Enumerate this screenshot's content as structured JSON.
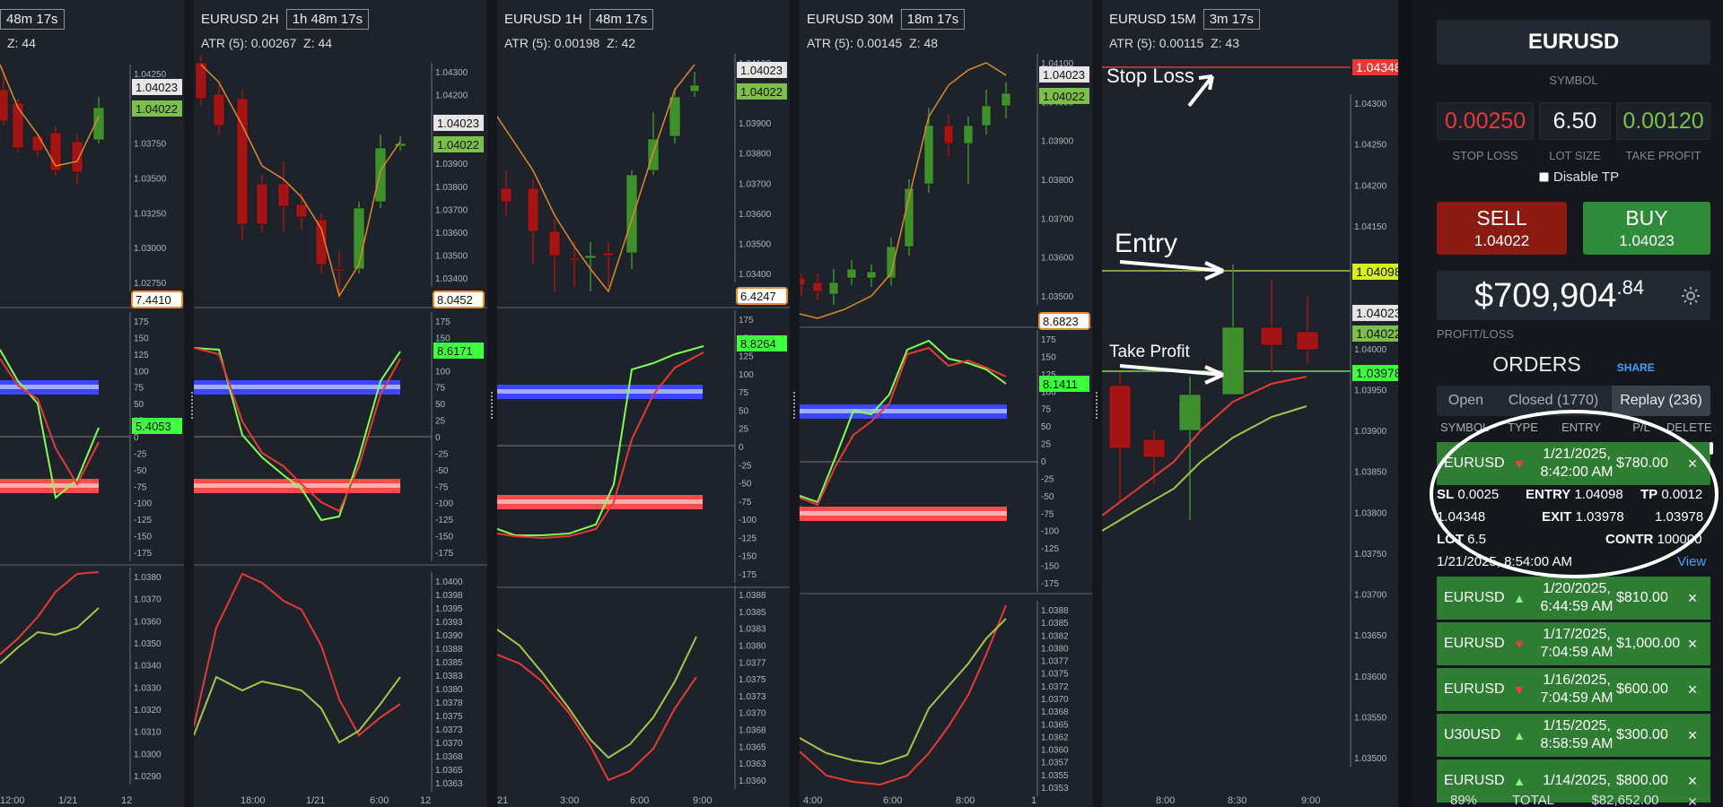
{
  "charts": [
    {
      "symbol": "",
      "timeframe": "48m 17s",
      "atr": "",
      "z": "Z: 44",
      "price_ticks": [
        "1.04250",
        "1.04000",
        "1.03750",
        "1.03500",
        "1.03250",
        "1.03000",
        "1.02750"
      ],
      "price_tags": [
        "1.04023",
        "1.04022"
      ],
      "osc_value": "7.4410",
      "osc_tag": "5.4053",
      "osc_ticks": [
        "175",
        "150",
        "125",
        "100",
        "75",
        "50",
        "25",
        "0",
        "-25",
        "-50",
        "-75",
        "-100",
        "-125",
        "-150",
        "-175"
      ],
      "low_ticks": [
        "1.0380",
        "1.0370",
        "1.0360",
        "1.0350",
        "1.0340",
        "1.0330",
        "1.0320",
        "1.0310",
        "1.0300",
        "1.0290"
      ],
      "time_ticks": [
        "12:00",
        "1/21",
        "12"
      ]
    },
    {
      "symbol": "EURUSD 2H",
      "timeframe": "1h 48m 17s",
      "atr": "ATR (5): 0.00267",
      "z": "Z: 44",
      "price_ticks": [
        "1.04300",
        "1.04200",
        "1.04100",
        "1.04000",
        "1.03900",
        "1.03800",
        "1.03700",
        "1.03600",
        "1.03500",
        "1.03400"
      ],
      "price_tags": [
        "1.04023",
        "1.04022"
      ],
      "osc_value": "8.0452",
      "osc_tag": "8.6171",
      "osc_ticks": [
        "175",
        "150",
        "125",
        "100",
        "75",
        "50",
        "25",
        "0",
        "-25",
        "-50",
        "-75",
        "-100",
        "-125",
        "-150",
        "-175"
      ],
      "low_ticks": [
        "1.0400",
        "1.0398",
        "1.0395",
        "1.0393",
        "1.0390",
        "1.0388",
        "1.0385",
        "1.0383",
        "1.0380",
        "1.0378",
        "1.0375",
        "1.0373",
        "1.0370",
        "1.0368",
        "1.0365",
        "1.0363"
      ],
      "time_ticks": [
        "18:00",
        "1/21",
        "6:00",
        "12"
      ]
    },
    {
      "symbol": "EURUSD 1H",
      "timeframe": "48m 17s",
      "atr": "ATR (5): 0.00198",
      "z": "Z: 42",
      "price_ticks": [
        "1.04100",
        "1.04000",
        "1.03900",
        "1.03800",
        "1.03700",
        "1.03600",
        "1.03500",
        "1.03400"
      ],
      "price_tags": [
        "1.04023",
        "1.04022"
      ],
      "osc_value": "6.4247",
      "osc_tag": "8.8264",
      "osc_ticks": [
        "175",
        "150",
        "125",
        "100",
        "75",
        "50",
        "25",
        "0",
        "-25",
        "-50",
        "-75",
        "-100",
        "-125",
        "-150",
        "-175"
      ],
      "low_ticks": [
        "1.0388",
        "1.0385",
        "1.0383",
        "1.0380",
        "1.0377",
        "1.0375",
        "1.0373",
        "1.0370",
        "1.0368",
        "1.0365",
        "1.0363",
        "1.0360"
      ],
      "time_ticks": [
        "21",
        "3:00",
        "6:00",
        "9:00"
      ]
    },
    {
      "symbol": "EURUSD 30M",
      "timeframe": "18m 17s",
      "atr": "ATR (5): 0.00145",
      "z": "Z: 48",
      "price_ticks": [
        "1.04100",
        "1.04000",
        "1.03900",
        "1.03800",
        "1.03700",
        "1.03600",
        "1.03500"
      ],
      "price_tags": [
        "1.04023",
        "1.04022"
      ],
      "osc_value": "8.6823",
      "osc_tag": "8.1411",
      "osc_ticks": [
        "175",
        "150",
        "125",
        "100",
        "75",
        "50",
        "25",
        "0",
        "-25",
        "-50",
        "-75",
        "-100",
        "-125",
        "-150",
        "-175"
      ],
      "low_ticks": [
        "1.0388",
        "1.0385",
        "1.0382",
        "1.0380",
        "1.0377",
        "1.0375",
        "1.0372",
        "1.0370",
        "1.0368",
        "1.0365",
        "1.0362",
        "1.0360",
        "1.0357",
        "1.0355",
        "1.0353"
      ],
      "time_ticks": [
        "4:00",
        "6:00",
        "8:00",
        "1"
      ]
    },
    {
      "symbol": "EURUSD 15M",
      "timeframe": "3m 17s",
      "atr": "ATR (5): 0.00115",
      "z": "Z: 43",
      "price_ticks": [
        "1.04300",
        "1.04250",
        "1.04200",
        "1.04150",
        "1.04100",
        "1.04050",
        "1.04000",
        "1.03950",
        "1.03900",
        "1.03850",
        "1.03800",
        "1.03750",
        "1.03700",
        "1.03650",
        "1.03600",
        "1.03550",
        "1.03500"
      ],
      "price_tags": {
        "stop": "1.04348",
        "entry": "1.04098",
        "bid": "1.04023",
        "ask": "1.04022",
        "tp": "1.03978"
      },
      "annotations": {
        "stop": "Stop Loss",
        "entry": "Entry",
        "tp": "Take Profit"
      },
      "time_ticks": [
        "8:00",
        "8:30",
        "9:00"
      ]
    }
  ],
  "panel": {
    "symbol": "EURUSD",
    "symbol_label": "SYMBOL",
    "stop_loss": "0.00250",
    "lot_size": "6.50",
    "take_profit": "0.00120",
    "stop_loss_label": "STOP LOSS",
    "lot_size_label": "LOT SIZE",
    "take_profit_label": "TAKE PROFIT",
    "disable_tp": "Disable TP",
    "sell_label": "SELL",
    "sell_price": "1.04022",
    "buy_label": "BUY",
    "buy_price": "1.04023",
    "pl_main": "$709,904",
    "pl_cents": ".84",
    "pl_label": "PROFIT/LOSS",
    "orders_title": "ORDERS",
    "share": "SHARE",
    "tabs": [
      "Open",
      "Closed (1770)",
      "Replay (236)"
    ],
    "columns": [
      "SYMBOL",
      "TYPE",
      "ENTRY",
      "P/L",
      "DELETE"
    ],
    "orders": [
      {
        "symbol": "EURUSD",
        "dir": "down",
        "date": "1/21/2025,",
        "time": "8:42:00 AM",
        "pl": "$780.00"
      },
      {
        "symbol": "EURUSD",
        "dir": "up",
        "date": "1/20/2025,",
        "time": "6:44:59 AM",
        "pl": "$810.00"
      },
      {
        "symbol": "EURUSD",
        "dir": "down",
        "date": "1/17/2025,",
        "time": "7:04:59 AM",
        "pl": "$1,000.00"
      },
      {
        "symbol": "EURUSD",
        "dir": "down",
        "date": "1/16/2025,",
        "time": "7:04:59 AM",
        "pl": "$600.00"
      },
      {
        "symbol": "U30USD",
        "dir": "up",
        "date": "1/15/2025,",
        "time": "8:58:59 AM",
        "pl": "$300.00"
      },
      {
        "symbol": "EURUSD",
        "dir": "up",
        "date": "1/14/2025,",
        "time": "",
        "pl": "$800.00"
      }
    ],
    "detail": {
      "sl_k": "SL",
      "sl": "0.0025",
      "sl_price": "1.04348",
      "entry_k": "ENTRY",
      "entry": "1.04098",
      "exit_k": "EXIT",
      "exit": "1.03978",
      "tp_k": "TP",
      "tp": "0.0012",
      "tp_price": "1.03978",
      "lot_k": "LOT",
      "lot": "6.5",
      "contr_k": "CONTR",
      "contr": "100000",
      "closed": "1/21/2025, 8:54:00 AM",
      "view": "View"
    },
    "footer": {
      "pct": "89%",
      "total_label": "TOTAL",
      "total": "$82,652.00"
    },
    "colors": {
      "sell": "#8b1a13",
      "buy": "#2e8b3a",
      "row": "#2e7d32",
      "sl_value": "#e53935",
      "tp_value": "#7cc04b",
      "share": "#3fa0ff"
    }
  }
}
